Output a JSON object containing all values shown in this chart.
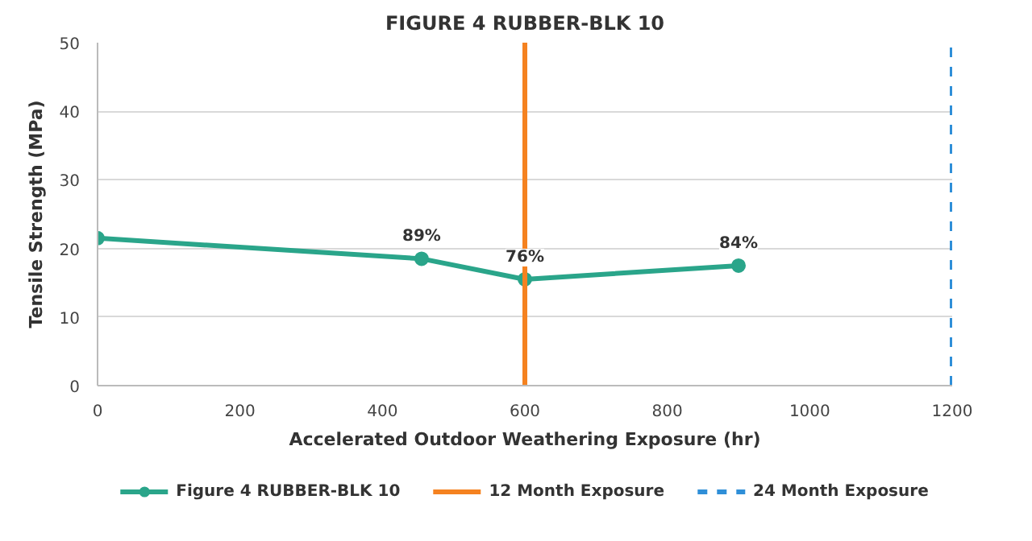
{
  "chart_data": {
    "type": "line",
    "title": "FIGURE 4 RUBBER-BLK 10",
    "xlabel": "Accelerated Outdoor Weathering Exposure (hr)",
    "ylabel": "Tensile Strength (MPa)",
    "x": [
      0,
      455,
      600,
      900
    ],
    "series": [
      {
        "name": "Figure 4 RUBBER-BLK 10",
        "color": "#2aa58a",
        "values": [
          21.5,
          18.5,
          15.5,
          17.5
        ]
      }
    ],
    "annotations": [
      {
        "text": "89%",
        "x": 455,
        "y": 18.5
      },
      {
        "text": "76%",
        "x": 600,
        "y": 15.5
      },
      {
        "text": "84%",
        "x": 900,
        "y": 17.5
      }
    ],
    "xlim": [
      0,
      1200
    ],
    "ylim": [
      0,
      50
    ],
    "xticks": [
      0,
      200,
      400,
      600,
      800,
      1000,
      1200
    ],
    "yticks": [
      0,
      10,
      20,
      30,
      40,
      50
    ],
    "ref_lines": [
      {
        "axis": "x",
        "value": 600,
        "label": "12 Month Exposure",
        "color": "#f58220",
        "line_style": "solid"
      },
      {
        "axis": "x",
        "value": 1200,
        "label": "24 Month Exposure",
        "color": "#2f8fd8",
        "line_style": "dashed"
      }
    ],
    "grid": "y",
    "legend": "bottom",
    "marker": "circle",
    "line_style": "solid"
  }
}
